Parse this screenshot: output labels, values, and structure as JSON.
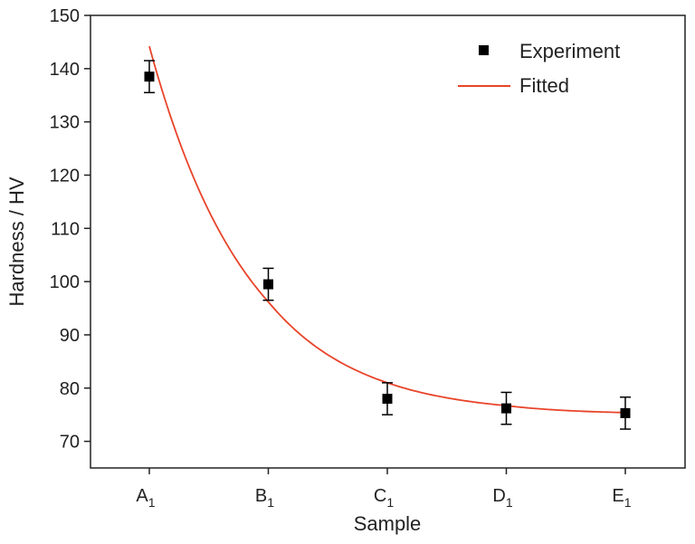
{
  "chart_data": {
    "type": "scatter",
    "title": "",
    "xlabel": "Sample",
    "ylabel": "Hardness / HV",
    "categories": [
      {
        "base": "A",
        "sub": "1"
      },
      {
        "base": "B",
        "sub": "1"
      },
      {
        "base": "C",
        "sub": "1"
      },
      {
        "base": "D",
        "sub": "1"
      },
      {
        "base": "E",
        "sub": "1"
      }
    ],
    "ylim": [
      65,
      150
    ],
    "yticks": [
      "70",
      "80",
      "90",
      "100",
      "110",
      "120",
      "130",
      "140",
      "150"
    ],
    "grid": false,
    "legend_position": "top-right",
    "series": [
      {
        "name": "Experiment",
        "kind": "points",
        "color": "#000000",
        "values": [
          138.5,
          99.5,
          78.0,
          76.2,
          75.3
        ],
        "errors": [
          3.0,
          3.0,
          3.0,
          3.0,
          3.0
        ]
      },
      {
        "name": "Fitted",
        "kind": "line",
        "color": "#e8442a",
        "values": [
          144.2,
          96.2,
          81.0,
          76.7,
          75.4
        ]
      }
    ]
  }
}
